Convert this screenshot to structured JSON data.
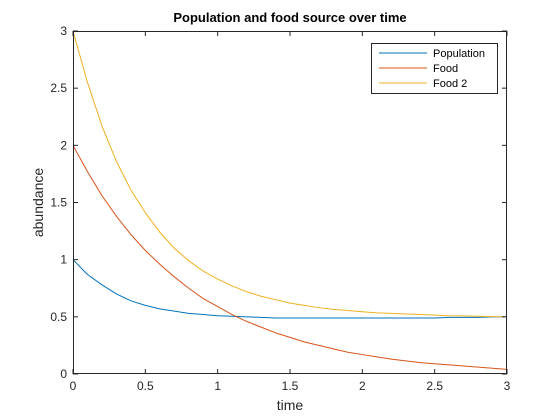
{
  "chart_data": {
    "type": "line",
    "title": "Population and food source over time",
    "xlabel": "time",
    "ylabel": "abundance",
    "xlim": [
      0,
      3
    ],
    "ylim": [
      0,
      3
    ],
    "xticks": [
      0,
      0.5,
      1,
      1.5,
      2,
      2.5,
      3
    ],
    "xtick_labels": [
      "0",
      "0.5",
      "1",
      "1.5",
      "2",
      "2.5",
      "3"
    ],
    "yticks": [
      0,
      0.5,
      1,
      1.5,
      2,
      2.5,
      3
    ],
    "ytick_labels": [
      "0",
      "0.5",
      "1",
      "1.5",
      "2",
      "2.5",
      "3"
    ],
    "grid": false,
    "legend_position": "top-right",
    "x": [
      0,
      0.1,
      0.2,
      0.3,
      0.4,
      0.5,
      0.6,
      0.7,
      0.8,
      0.9,
      1.0,
      1.1,
      1.2,
      1.3,
      1.4,
      1.5,
      1.6,
      1.7,
      1.8,
      1.9,
      2.0,
      2.1,
      2.2,
      2.3,
      2.4,
      2.5,
      2.6,
      2.7,
      2.8,
      2.9,
      3.0
    ],
    "series": [
      {
        "name": "Population",
        "color": "#0072BD",
        "values": [
          1.0,
          0.87,
          0.78,
          0.7,
          0.64,
          0.6,
          0.57,
          0.55,
          0.53,
          0.52,
          0.51,
          0.505,
          0.5,
          0.495,
          0.49,
          0.49,
          0.49,
          0.49,
          0.49,
          0.49,
          0.49,
          0.49,
          0.49,
          0.49,
          0.49,
          0.49,
          0.495,
          0.495,
          0.495,
          0.5,
          0.5
        ]
      },
      {
        "name": "Food",
        "color": "#D95319",
        "values": [
          2.0,
          1.77,
          1.56,
          1.38,
          1.22,
          1.08,
          0.96,
          0.85,
          0.75,
          0.66,
          0.59,
          0.52,
          0.46,
          0.41,
          0.36,
          0.32,
          0.28,
          0.25,
          0.22,
          0.19,
          0.17,
          0.15,
          0.13,
          0.115,
          0.1,
          0.09,
          0.08,
          0.07,
          0.06,
          0.05,
          0.04
        ]
      },
      {
        "name": "Food 2",
        "color": "#EDB120",
        "values": [
          3.0,
          2.55,
          2.17,
          1.86,
          1.61,
          1.41,
          1.24,
          1.1,
          0.99,
          0.9,
          0.83,
          0.77,
          0.72,
          0.68,
          0.65,
          0.62,
          0.6,
          0.58,
          0.565,
          0.555,
          0.545,
          0.535,
          0.53,
          0.525,
          0.52,
          0.515,
          0.51,
          0.508,
          0.505,
          0.502,
          0.5
        ]
      }
    ]
  }
}
